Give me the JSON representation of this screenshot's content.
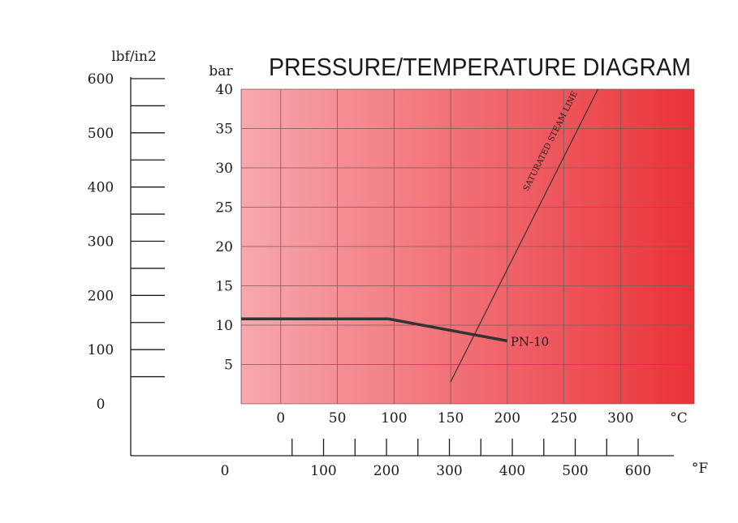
{
  "chart_data": {
    "type": "line",
    "title": "PRESSURE/TEMPERATURE DIAGRAM",
    "y_axis": {
      "label": "bar",
      "ticks": [
        "5",
        "10",
        "15",
        "20",
        "25",
        "30",
        "35",
        "40"
      ],
      "ylim": [
        0,
        40
      ]
    },
    "y2_axis": {
      "label": "lbf/in2",
      "ticks": [
        "0",
        "100",
        "200",
        "300",
        "400",
        "500",
        "600"
      ]
    },
    "x_axis": {
      "unit": "°C",
      "ticks": [
        "0",
        "50",
        "100",
        "150",
        "200",
        "250",
        "300"
      ],
      "xlim": [
        -35,
        365
      ]
    },
    "x2_axis": {
      "unit": "°F",
      "ticks": [
        "0",
        "100",
        "200",
        "300",
        "400",
        "500",
        "600"
      ]
    },
    "grid": true,
    "background_gradient": [
      "#f7a8ae",
      "#ea3238"
    ],
    "series": [
      {
        "name": "PN-10",
        "color": "#333333",
        "points": [
          [
            -35,
            10.8
          ],
          [
            95,
            10.8
          ],
          [
            200,
            8.0
          ]
        ]
      },
      {
        "name": "SATURATED STEAM LINE",
        "color": "#333333",
        "points": [
          [
            150,
            2.8
          ],
          [
            280,
            40.0
          ]
        ]
      }
    ]
  }
}
